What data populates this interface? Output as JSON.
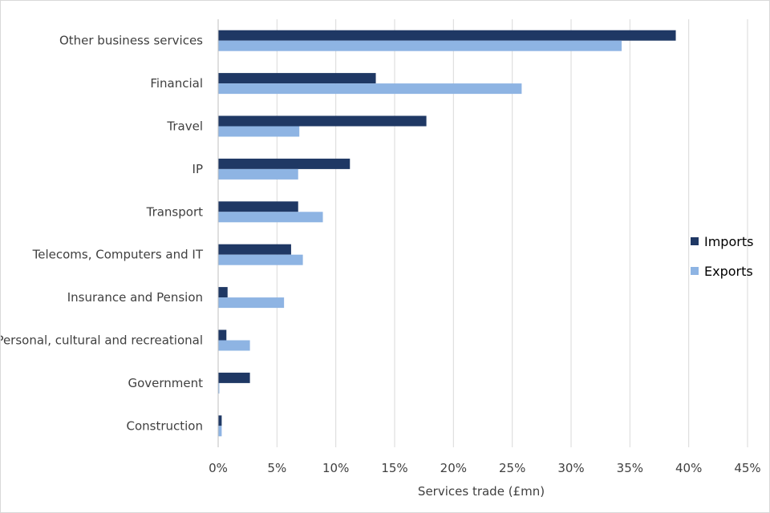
{
  "chart_data": {
    "type": "bar",
    "orientation": "horizontal",
    "title": "",
    "xlabel": "Services trade (£mn)",
    "ylabel": "",
    "xlim": [
      0,
      45
    ],
    "x_ticks": [
      0,
      5,
      10,
      15,
      20,
      25,
      30,
      35,
      40,
      45
    ],
    "x_tick_labels": [
      "0%",
      "5%",
      "10%",
      "15%",
      "20%",
      "25%",
      "30%",
      "35%",
      "40%",
      "45%"
    ],
    "grid": "vertical",
    "legend": "right",
    "categories": [
      "Other business services",
      "Financial",
      "Travel",
      "IP",
      "Transport",
      "Telecoms, Computers and IT",
      "Insurance and Pension",
      "Personal, cultural and recreational",
      "Government",
      "Construction"
    ],
    "series": [
      {
        "name": "Imports",
        "color": "#1f3864",
        "values": [
          38.9,
          13.4,
          17.7,
          11.2,
          6.8,
          6.2,
          0.8,
          0.7,
          2.7,
          0.3
        ]
      },
      {
        "name": "Exports",
        "color": "#8eb4e3",
        "values": [
          34.3,
          25.8,
          6.9,
          6.8,
          8.9,
          7.2,
          5.6,
          2.7,
          0.1,
          0.3
        ]
      }
    ]
  }
}
